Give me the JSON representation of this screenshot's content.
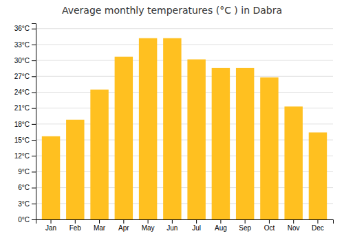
{
  "chart_data": {
    "type": "bar",
    "title": "Average monthly temperatures (°C ) in Dabra",
    "categories": [
      "Jan",
      "Feb",
      "Mar",
      "Apr",
      "May",
      "Jun",
      "Jul",
      "Aug",
      "Sep",
      "Oct",
      "Nov",
      "Dec"
    ],
    "values": [
      15.7,
      18.8,
      24.5,
      30.7,
      34.2,
      34.2,
      30.2,
      28.6,
      28.6,
      26.8,
      21.3,
      16.4
    ],
    "color": "#FFC020",
    "ylim": [
      0,
      37
    ],
    "yticks": [
      {
        "value": 0,
        "label": "0°C"
      },
      {
        "value": 3,
        "label": "3°C"
      },
      {
        "value": 6,
        "label": "6°C"
      },
      {
        "value": 9,
        "label": "9°C"
      },
      {
        "value": 12,
        "label": "12°C"
      },
      {
        "value": 15,
        "label": "15°C"
      },
      {
        "value": 18,
        "label": "18°C"
      },
      {
        "value": 21,
        "label": "21°C"
      },
      {
        "value": 24,
        "label": "24°C"
      },
      {
        "value": 27,
        "label": "27°C"
      },
      {
        "value": 30,
        "label": "30°C"
      },
      {
        "value": 33,
        "label": "33°C"
      },
      {
        "value": 36,
        "label": "36°C"
      }
    ],
    "grid": true
  }
}
